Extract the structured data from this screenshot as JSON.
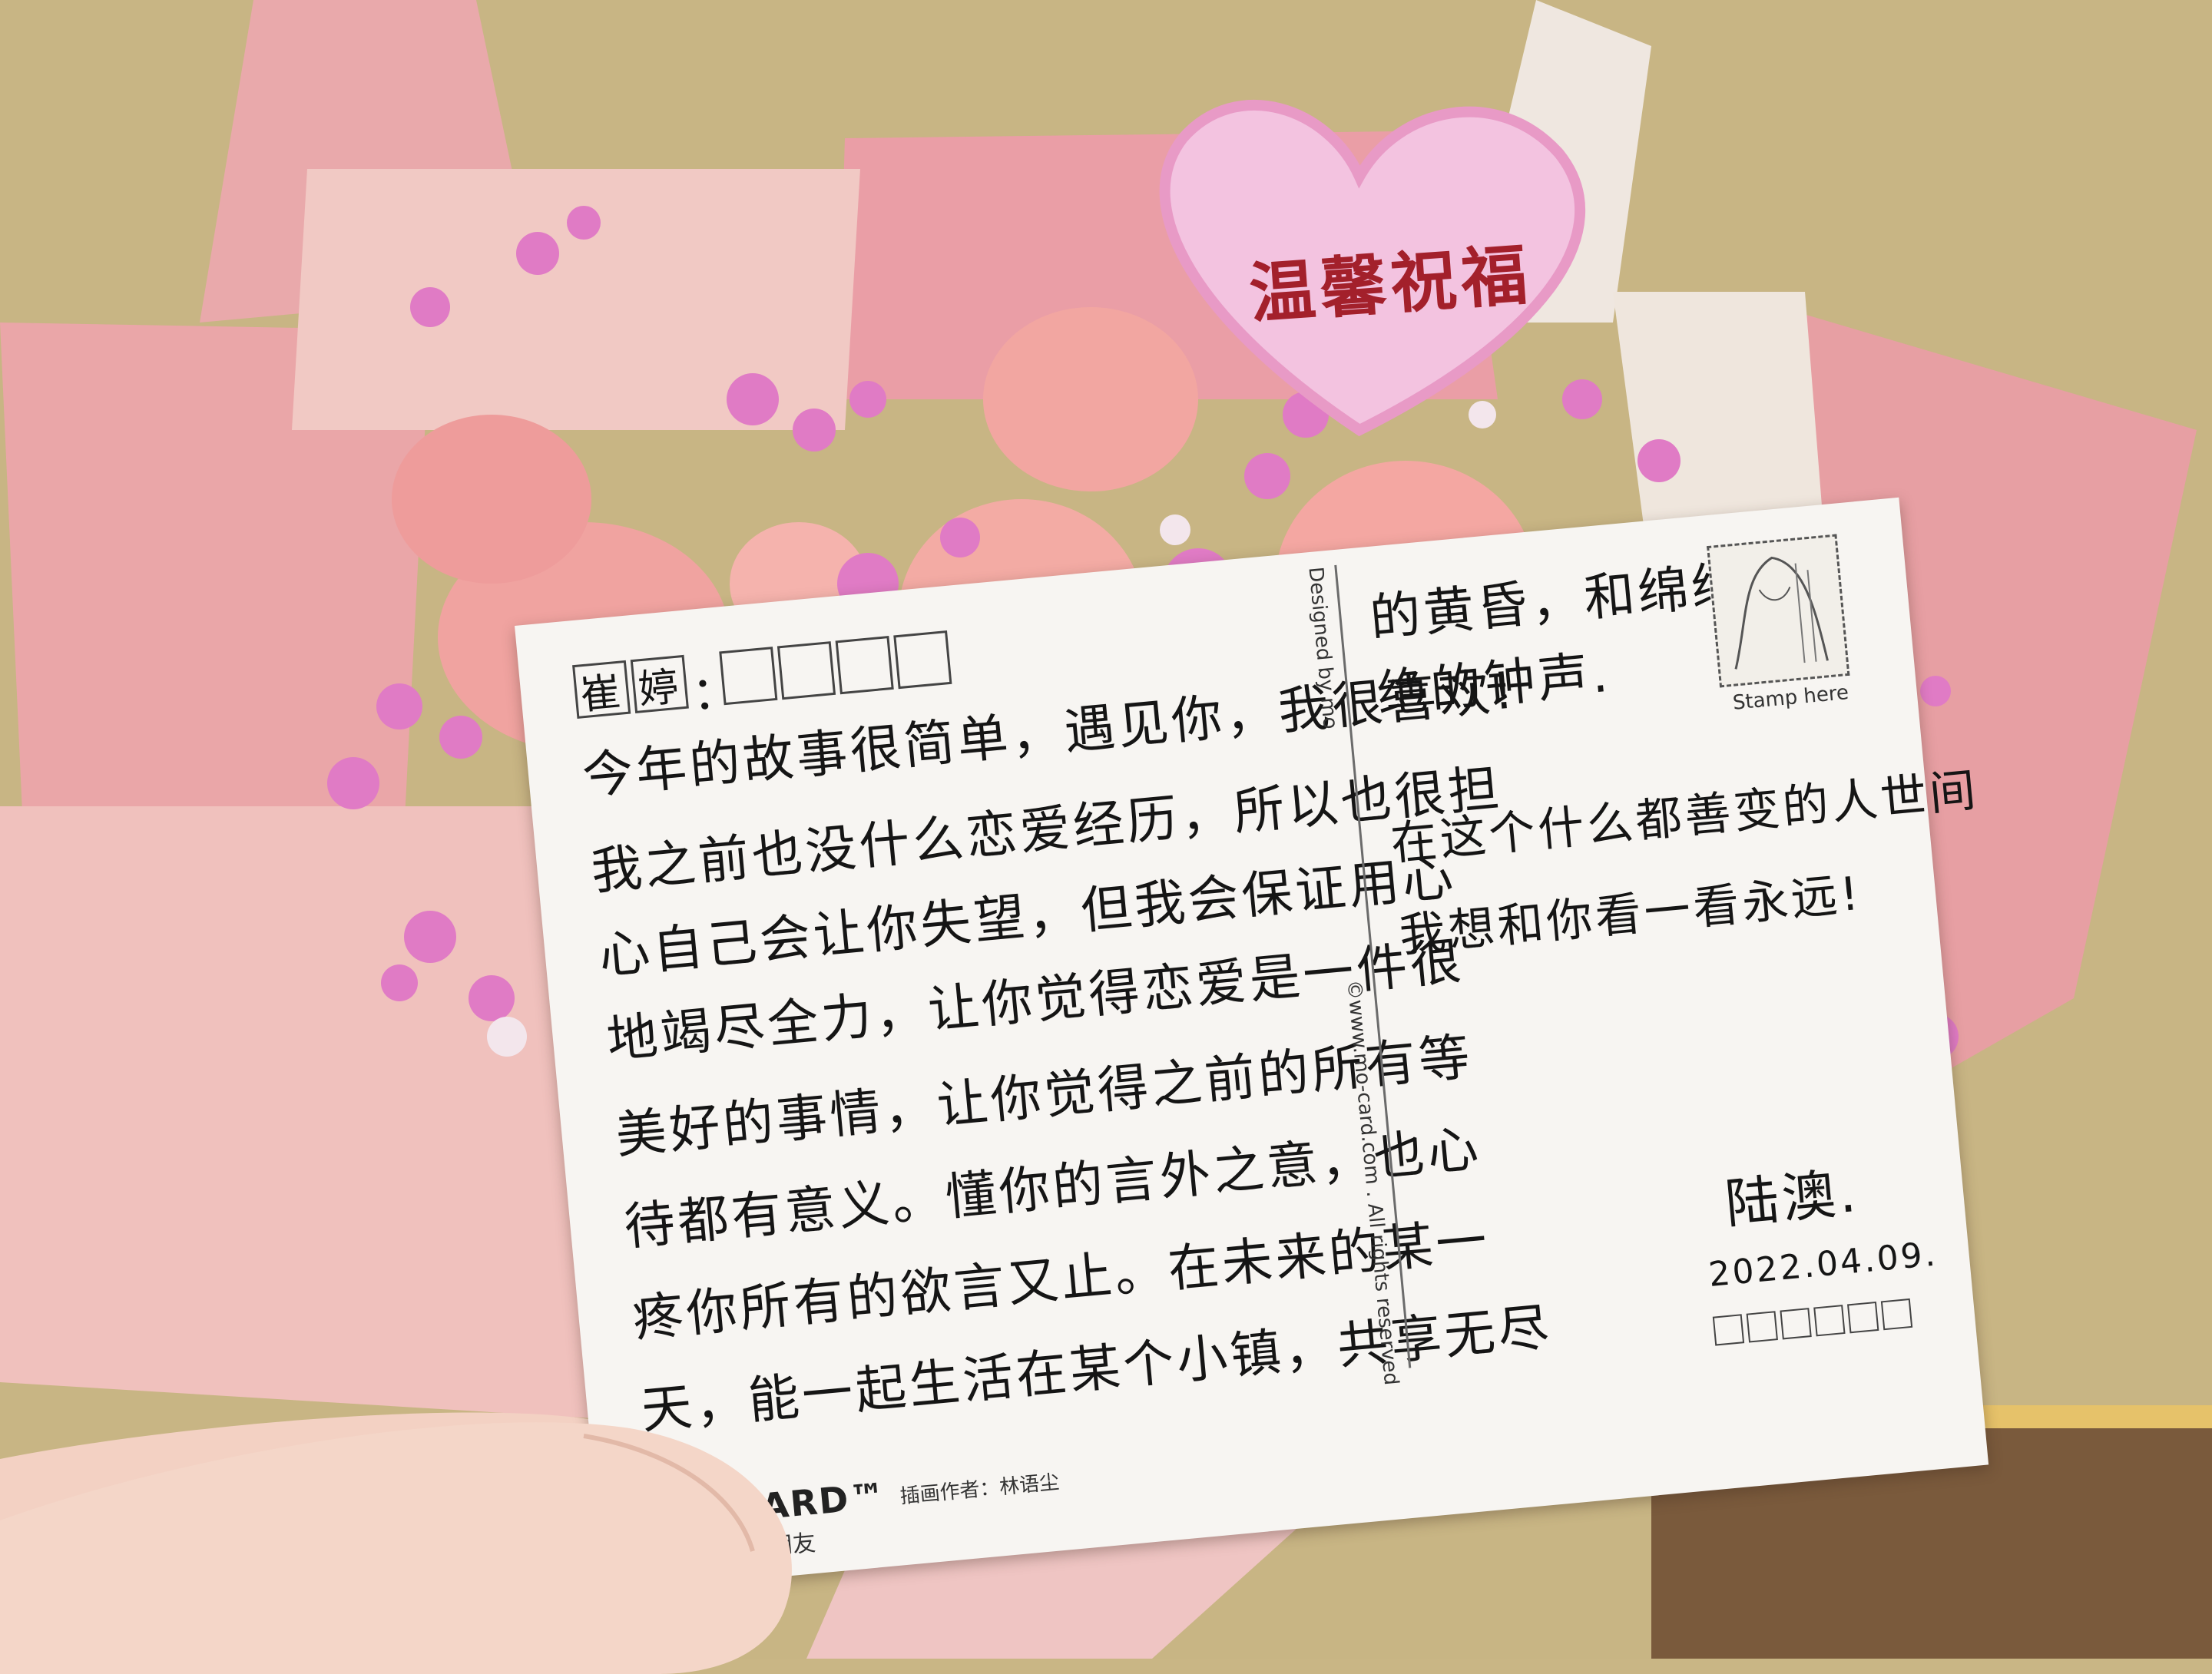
{
  "heart_tag": {
    "text": "温馨祝福"
  },
  "postcard": {
    "recipient_chars": [
      "崔",
      "婷",
      "",
      "",
      "",
      ""
    ],
    "colon": "：",
    "left_lines": [
      "今年的故事很简单，遇见你，我很喜欢!",
      "我之前也没什么恋爱经历，所以也很担",
      "心自己会让你失望，但我会保证用心",
      "地竭尽全力，让你觉得恋爱是一件很",
      "美好的事情，让你觉得之前的所有等",
      "待都有意义。懂你的言外之意，也心",
      "疼你所有的欲言又止。在未来的某一",
      "天，能一起生活在某个小镇，共享无尽"
    ],
    "right_lines": [
      "的黄昏，和绵绵不",
      "绝的钟声.",
      "在这个什么都善变的人世间",
      "我想和你看一看永远!"
    ],
    "signature": "陆澳.",
    "date": "2022.04.09.",
    "stamp_caption": "Stamp here",
    "designed_by": "Designed by mo",
    "copyright": "©www.mo-card.com . All rights reserved",
    "brand": "MO·CARD™",
    "brand_tagline": "片，一个新朋友",
    "illustrator": "插画作者：林语尘"
  },
  "colors": {
    "wall": "#c9b685",
    "wrap_pink": "#e8a3a6",
    "rose": "#f0a7a4",
    "babys_breath": "#e27cc7",
    "card": "#f7f5f2",
    "heart_text": "#a3202b"
  }
}
